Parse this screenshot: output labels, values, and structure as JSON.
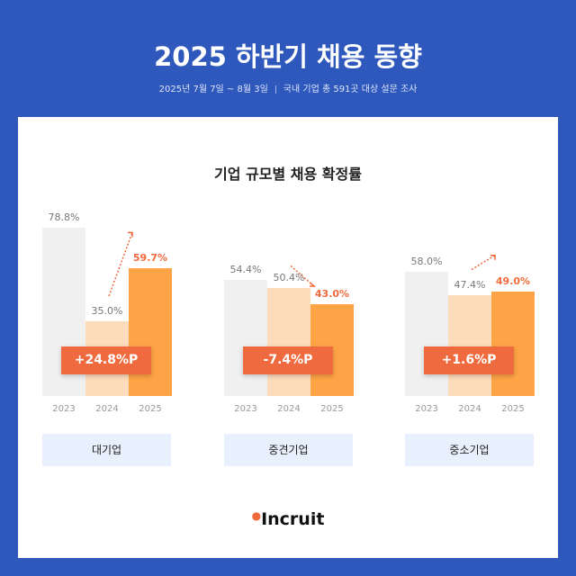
{
  "header": {
    "title": "2025 하반기 채용 동향",
    "period": "2025년 7월 7일 ~ 8월 3일",
    "survey": "국내 기업 총 591곳 대상 설문 조사"
  },
  "brand": {
    "logo": "Incruit"
  },
  "colors": {
    "background": "#2f58bd",
    "bar_2023": "#f0f0f0",
    "bar_2024": "#fddcbb",
    "bar_2025": "#fea446",
    "badge": "#ef6b3f"
  },
  "chart_data": {
    "type": "bar",
    "title": "기업 규모별 채용 확정률",
    "categories": [
      "2023",
      "2024",
      "2025"
    ],
    "ylim": [
      0,
      80
    ],
    "groups": [
      {
        "name": "대기업",
        "values": [
          78.8,
          35.0,
          59.7
        ],
        "labels": [
          "78.8%",
          "35.0%",
          "59.7%"
        ],
        "change": "+24.8%P",
        "trend": "up"
      },
      {
        "name": "중견기업",
        "values": [
          54.4,
          50.4,
          43.0
        ],
        "labels": [
          "54.4%",
          "50.4%",
          "43.0%"
        ],
        "change": "-7.4%P",
        "trend": "down"
      },
      {
        "name": "중소기업",
        "values": [
          58.0,
          47.4,
          49.0
        ],
        "labels": [
          "58.0%",
          "47.4%",
          "49.0%"
        ],
        "change": "+1.6%P",
        "trend": "up"
      }
    ]
  }
}
